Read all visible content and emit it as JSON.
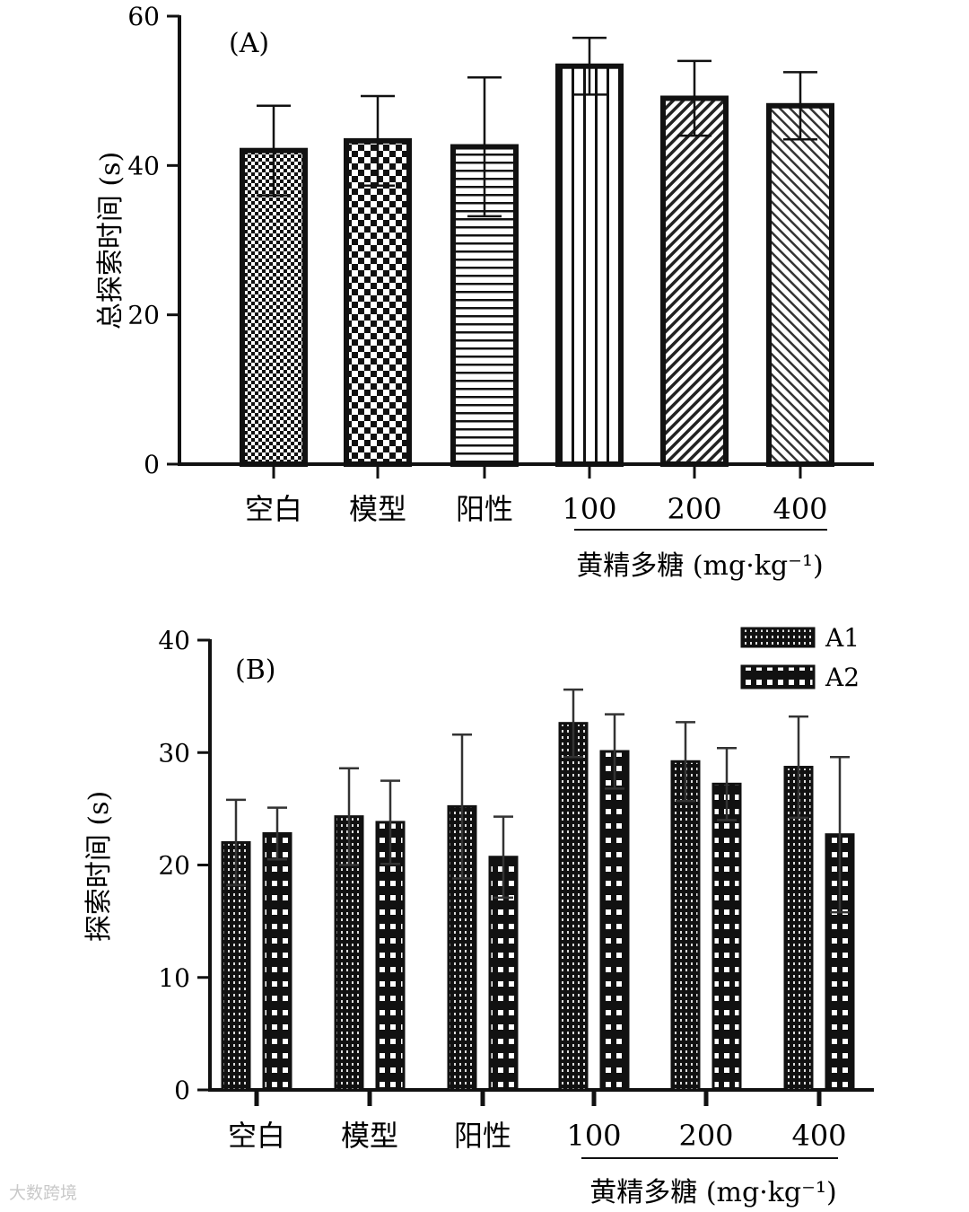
{
  "chart_data": [
    {
      "type": "bar",
      "panel_label": "(A)",
      "ylabel": "总探索时间 (s)",
      "ylim": [
        0,
        60
      ],
      "yticks": [
        "0",
        "20",
        "40",
        "60"
      ],
      "categories": [
        "空白",
        "模型",
        "阳性",
        "100",
        "200",
        "400"
      ],
      "group_label": "黄精多糖 (mg·kg⁻¹)",
      "values": [
        42,
        43.3,
        42.5,
        53.3,
        49,
        48
      ],
      "errors": [
        6,
        6,
        9.3,
        3.8,
        5,
        4.5
      ],
      "patterns": [
        "checker-fine",
        "checker-coarse",
        "hstripes",
        "vstripes",
        "diag-dense",
        "diag-light"
      ]
    },
    {
      "type": "bar",
      "panel_label": "(B)",
      "ylabel": "探索时间 (s)",
      "ylim": [
        0,
        40
      ],
      "yticks": [
        "0",
        "10",
        "20",
        "30",
        "40"
      ],
      "categories": [
        "空白",
        "模型",
        "阳性",
        "100",
        "200",
        "400"
      ],
      "group_label": "黄精多糖 (mg·kg⁻¹)",
      "series": [
        {
          "name": "A1",
          "values": [
            22,
            24.3,
            25.2,
            32.6,
            29.2,
            28.7
          ],
          "errors": [
            3.8,
            4.3,
            6.4,
            3.0,
            3.5,
            4.5
          ]
        },
        {
          "name": "A2",
          "values": [
            22.8,
            23.8,
            20.7,
            30.1,
            27.2,
            22.7
          ],
          "errors": [
            2.3,
            3.7,
            3.6,
            3.3,
            3.2,
            6.9
          ]
        }
      ]
    }
  ],
  "watermark": "大数跨境"
}
